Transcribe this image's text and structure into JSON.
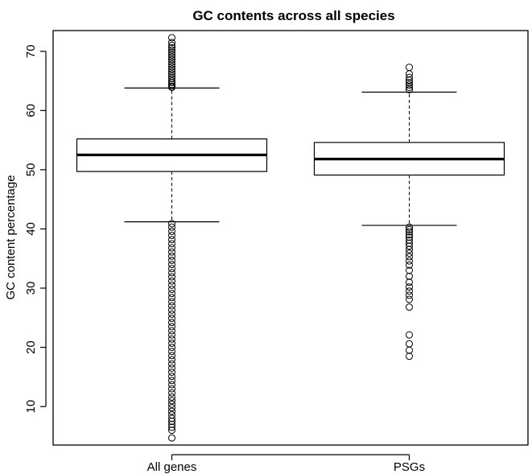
{
  "chart_data": {
    "type": "boxplot",
    "title": "GC contents across all species",
    "xlabel": "",
    "ylabel": "GC content percentage",
    "categories": [
      "All genes",
      "PSGs"
    ],
    "ylim": [
      3.5,
      73.5
    ],
    "yticks": [
      10,
      20,
      30,
      40,
      50,
      60,
      70
    ],
    "grid": false,
    "legend": "none",
    "boxes": [
      {
        "name": "All genes",
        "whisker_low": 41.2,
        "q1": 49.7,
        "median": 52.5,
        "q3": 55.2,
        "whisker_high": 63.8,
        "outliers": [
          72.3,
          71.5,
          71.0,
          70.6,
          70.2,
          69.8,
          69.4,
          69.0,
          68.6,
          68.2,
          67.8,
          67.4,
          67.0,
          66.6,
          66.2,
          65.8,
          65.4,
          65.0,
          64.7,
          64.4,
          64.1,
          63.9,
          40.9,
          40.3,
          39.6,
          38.9,
          38.2,
          37.5,
          36.8,
          36.1,
          35.4,
          34.7,
          34.0,
          33.3,
          32.6,
          31.9,
          31.2,
          30.5,
          29.8,
          29.1,
          28.4,
          27.7,
          27.0,
          26.3,
          25.6,
          24.9,
          24.2,
          23.5,
          22.8,
          22.1,
          21.4,
          20.7,
          20.0,
          19.3,
          18.6,
          17.9,
          17.2,
          16.5,
          15.8,
          15.1,
          14.4,
          13.7,
          13.0,
          12.3,
          11.6,
          11.0,
          10.4,
          9.8,
          9.2,
          8.6,
          8.0,
          7.5,
          7.0,
          6.5,
          6.0,
          4.7
        ]
      },
      {
        "name": "PSGs",
        "whisker_low": 40.6,
        "q1": 49.1,
        "median": 51.8,
        "q3": 54.6,
        "whisker_high": 63.1,
        "outliers": [
          67.3,
          66.2,
          65.6,
          65.1,
          64.7,
          64.3,
          63.9,
          63.5,
          40.3,
          39.9,
          39.5,
          39.0,
          38.6,
          38.1,
          37.6,
          37.1,
          36.5,
          35.9,
          35.3,
          34.6,
          33.9,
          33.0,
          32.0,
          31.0,
          30.2,
          29.5,
          28.8,
          28.1,
          26.8,
          22.1,
          20.6,
          19.5,
          18.5
        ]
      }
    ]
  }
}
